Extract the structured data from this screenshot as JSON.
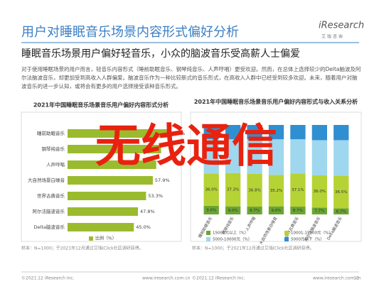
{
  "header": {
    "title": "用户对睡眠音乐场景内容形式偏好分析",
    "logo": "iResearch",
    "logo_sub": "艾 瑞 咨 询",
    "subtitle": "睡眠音乐场景用户偏好轻音乐，小众的脑波音乐受高薪人士偏爱",
    "paragraph": "对于使用睡眠场景的用户而言，轻音乐内容形式（睡前助眠音乐、钢琴纯音乐、人声哼唱）更受欢迎。然而，在总体上选择较少的Delta脑波及阿尔法脑波音乐，却更加受到高收入人群偏爱。脑波音乐作为一种比较新式的音乐形式，在高收入人群中已经受到较多欢迎。未来，随着用户对脑波音乐的进一步认知，或将会有更多的用户选择接受该种音乐形式。"
  },
  "chart_data": [
    {
      "type": "hbar",
      "title": "2021年中国睡眠音乐场景音乐用户偏好内容形式分析",
      "categories": [
        "睡前助眠音乐",
        "钢琴纯音乐",
        "人声哼唱",
        "大自然场景白噪音",
        "世界古典音乐",
        "阿尔法脑波音乐",
        "Delta脑波音乐"
      ],
      "values": [
        68.3,
        63.5,
        60.2,
        57.9,
        53.3,
        47.8,
        45.0
      ],
      "value_labels": [
        "68.3%",
        null,
        null,
        "57.9%",
        "53.3%",
        "47.8%",
        "45.0%"
      ],
      "color": "#9bbb2e",
      "xlim": [
        0,
        70
      ],
      "legend": "比例（%）",
      "source": "样本：N=1000；于2021年12月通过艾瑞iClick社区调研获得。"
    },
    {
      "type": "stacked_bar",
      "title": "2021年中国睡眠音乐场景音乐用户偏好内容形式与收入关系分析",
      "categories": [
        "睡前助眠音乐",
        "钢琴纯音乐",
        "人声哼唱",
        "大自然场景白噪音",
        "世界古典音乐",
        "阿尔法脑波音乐",
        "Delta脑波音乐"
      ],
      "ylim": [
        0,
        100
      ],
      "series": [
        {
          "name": "15001元以上（%）",
          "color": "#6aa533",
          "values": [
            9.6,
            9.0,
            8.7,
            9.0,
            8.7,
            7.7,
            6.7
          ],
          "value_labels": [
            "9.6%",
            "9.0%",
            "8.7%",
            "9.0%",
            "8.7%",
            "7.7%",
            "6.7%"
          ]
        },
        {
          "name": "10001-15000元（%）",
          "color": "#b5d334",
          "values": [
            36.0,
            37.3,
            36.8,
            35.2,
            37.1,
            36.0,
            36.5
          ],
          "value_labels": [
            "36.0%",
            "37.3%",
            "36.8%",
            "35.2%",
            "37.1%",
            "36.0%",
            "36.5%"
          ]
        },
        {
          "name": "5000-10000元（%）",
          "color": "#9fd7ee",
          "values": [
            38.4,
            37.7,
            38.5,
            39.8,
            38.2,
            39.3,
            39.8
          ]
        },
        {
          "name": "5000元以下（%）",
          "color": "#2f8fd0",
          "values": [
            16.0,
            16.0,
            16.0,
            16.0,
            16.0,
            17.0,
            17.0
          ]
        }
      ],
      "source": "样本：N=1000；于2021年12月通过艾瑞iClick社区调研获得。"
    }
  ],
  "footer": {
    "copyright": "©2021.12 iResearch Inc.",
    "site": "www.iresearch.com.cn",
    "page": "12"
  },
  "watermark": "无线通信"
}
